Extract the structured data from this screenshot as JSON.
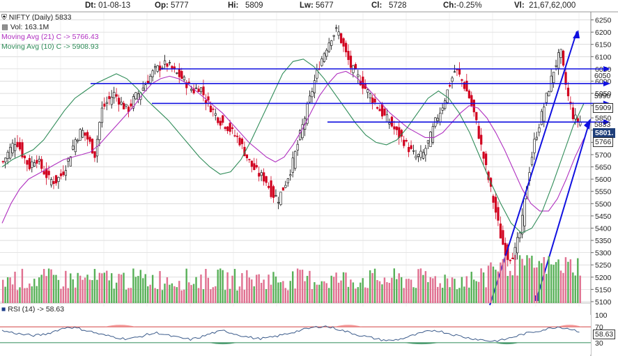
{
  "header": {
    "dt_label": "Dt:",
    "dt_value": "01-08-13",
    "op_label": "Op:",
    "op_value": "5777",
    "hi_label": "Hi:",
    "hi_value": "5809",
    "lw_label": "Lw:",
    "lw_value": "5677",
    "cl_label": "Cl:",
    "cl_value": "5728",
    "ch_label": "Ch:",
    "ch_value": "-0.25%",
    "vl_label": "Vl:",
    "vl_value": "21,67,62,000"
  },
  "legend": {
    "symbol": "NIFTY (Daily) 5833",
    "vol": "Vol: 163.1M",
    "ma21": "Moving Avg (21) C -> 5766.43",
    "ma10": "Moving Avg (10) C -> 5908.93",
    "rsi": "RSI (14) -> 58.63"
  },
  "price_tags": {
    "t1": "5909",
    "t2": "5833",
    "t3": "5801.",
    "t4": "5766",
    "t5": "5990",
    "t6": "6050",
    "rsi": "58.63"
  },
  "colors": {
    "up": "#006400",
    "down": "#d1001f",
    "ma21": "#b030c0",
    "ma10": "#2e8b57",
    "trend": "#1010e0",
    "rsi": "#3a5a8a",
    "grid": "#c8c8c8"
  },
  "chart_data": [
    {
      "type": "line",
      "title": "NIFTY (Daily)",
      "y_ticks": [
        5100,
        5150,
        5200,
        5250,
        5300,
        5350,
        5400,
        5450,
        5500,
        5550,
        5600,
        5650,
        5700,
        5750,
        5800,
        5850,
        5900,
        5950,
        6000,
        6050,
        6100,
        6150,
        6200,
        6250
      ],
      "ylim": [
        5080,
        6280
      ],
      "series": [
        {
          "name": "NIFTY (Daily)",
          "values": [
            5670,
            5720,
            5760,
            5700,
            5650,
            5690,
            5640,
            5600,
            5590,
            5620,
            5680,
            5760,
            5800,
            5760,
            5700,
            5880,
            5920,
            5950,
            5910,
            5880,
            5930,
            5960,
            6000,
            6040,
            6060,
            6070,
            6040,
            6020,
            5990,
            5960,
            5980,
            5920,
            5880,
            5840,
            5820,
            5790,
            5760,
            5700,
            5650,
            5620,
            5600,
            5540,
            5520,
            5580,
            5650,
            5750,
            5850,
            5950,
            6050,
            6120,
            6180,
            6210,
            6130,
            6060,
            6020,
            5980,
            5940,
            5900,
            5860,
            5830,
            5790,
            5760,
            5720,
            5690,
            5700,
            5760,
            5840,
            5900,
            5980,
            6050,
            6000,
            5940,
            5850,
            5720,
            5600,
            5480,
            5350,
            5280,
            5300,
            5400,
            5600,
            5750,
            5850,
            5950,
            6050,
            6120,
            5950,
            5850,
            5833
          ]
        },
        {
          "name": "Moving Avg (21) C",
          "values": [
            5420,
            5500,
            5560,
            5600,
            5620,
            5640,
            5660,
            5680,
            5690,
            5700,
            5710,
            5740,
            5780,
            5820,
            5860,
            5900,
            5950,
            5990,
            6010,
            6020,
            6010,
            5990,
            5960,
            5930,
            5900,
            5870,
            5830,
            5790,
            5750,
            5720,
            5690,
            5670,
            5690,
            5740,
            5800,
            5870,
            5940,
            5990,
            6030,
            6040,
            6020,
            5990,
            5950,
            5910,
            5870,
            5840,
            5810,
            5790,
            5770,
            5770,
            5790,
            5830,
            5870,
            5900,
            5890,
            5850,
            5790,
            5720,
            5640,
            5560,
            5500,
            5470,
            5470,
            5520,
            5600,
            5690,
            5766
          ]
        },
        {
          "name": "Moving Avg (10) C",
          "values": [
            5650,
            5680,
            5700,
            5720,
            5760,
            5820,
            5880,
            5930,
            5960,
            5990,
            6010,
            6030,
            6010,
            5970,
            5920,
            5880,
            5840,
            5790,
            5740,
            5690,
            5650,
            5620,
            5630,
            5680,
            5760,
            5850,
            5940,
            6030,
            6080,
            6090,
            6060,
            6010,
            5950,
            5890,
            5830,
            5780,
            5750,
            5740,
            5760,
            5810,
            5870,
            5930,
            5960,
            5930,
            5870,
            5790,
            5690,
            5590,
            5500,
            5420,
            5380,
            5400,
            5470,
            5580,
            5700,
            5820,
            5909
          ]
        },
        {
          "name": "RSI (14)",
          "values": [
            60,
            55,
            50,
            48,
            52,
            62,
            70,
            65,
            58,
            50,
            45,
            40,
            42,
            50,
            55,
            48,
            42,
            38,
            45,
            55,
            60,
            52,
            45,
            40,
            42,
            48,
            55,
            62,
            68,
            72,
            66,
            58,
            50,
            44,
            38,
            35,
            40,
            48,
            56,
            62,
            55,
            48,
            42,
            38,
            34,
            36,
            44,
            52,
            58,
            64,
            70,
            66,
            58.63
          ]
        }
      ]
    }
  ]
}
